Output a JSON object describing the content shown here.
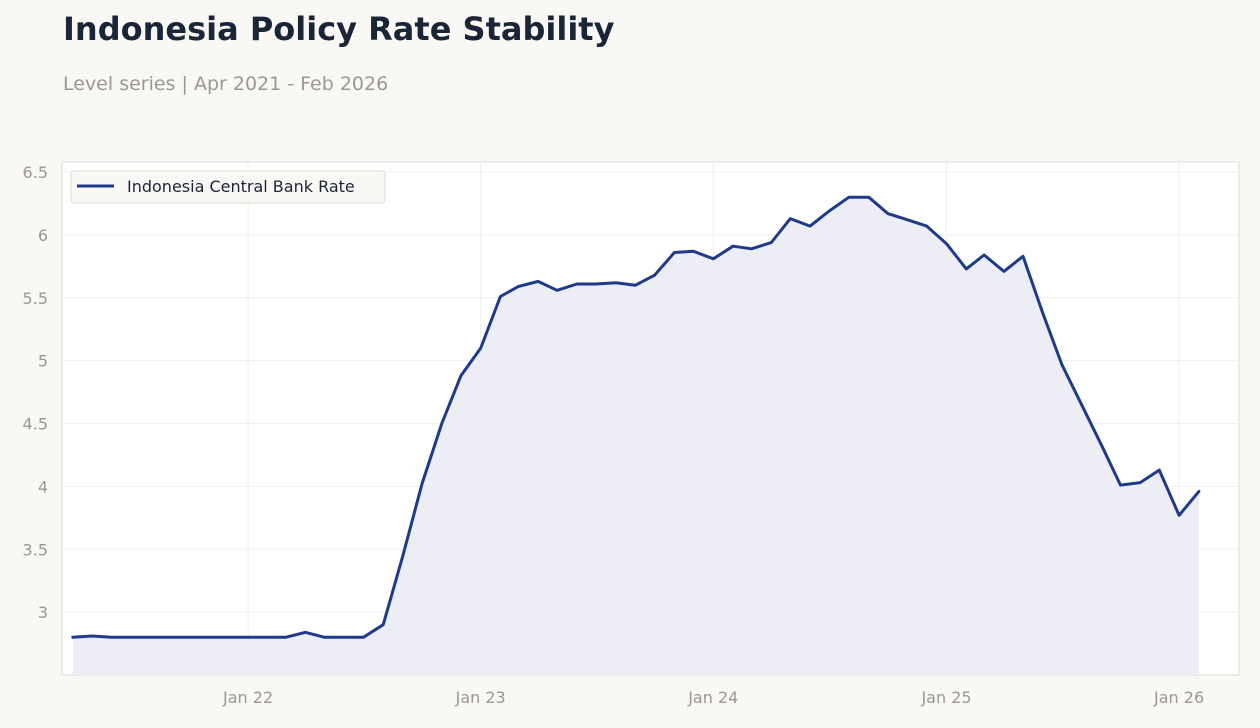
{
  "chart_data": {
    "type": "area",
    "title": "Indonesia Policy Rate Stability",
    "subtitle": "Level series | Apr 2021 - Feb 2026",
    "xlabel": "",
    "ylabel": "",
    "ylim": [
      2.5,
      6.58
    ],
    "y_ticks": [
      3,
      3.5,
      4,
      4.5,
      5,
      5.5,
      6,
      6.5
    ],
    "x_range": [
      "2021-03-15",
      "2026-04-05"
    ],
    "x_ticks": [
      {
        "date": "2022-01-01",
        "label": "Jan 22"
      },
      {
        "date": "2023-01-01",
        "label": "Jan 23"
      },
      {
        "date": "2024-01-01",
        "label": "Jan 24"
      },
      {
        "date": "2025-01-01",
        "label": "Jan 25"
      },
      {
        "date": "2026-01-01",
        "label": "Jan 26"
      }
    ],
    "grid": true,
    "legend": "top-left",
    "colors": {
      "line": "#1f3a8a",
      "fill": "#ecedf5",
      "background": "#f9f8f5",
      "plot_background": "#ffffff"
    },
    "series": [
      {
        "name": "Indonesia Central Bank Rate",
        "x": [
          "2021-04-01",
          "2021-05-01",
          "2021-06-01",
          "2021-07-01",
          "2021-08-01",
          "2021-09-01",
          "2021-10-01",
          "2021-11-01",
          "2021-12-01",
          "2022-01-01",
          "2022-02-01",
          "2022-03-01",
          "2022-04-01",
          "2022-05-01",
          "2022-06-01",
          "2022-07-01",
          "2022-08-01",
          "2022-09-01",
          "2022-10-01",
          "2022-11-01",
          "2022-12-01",
          "2023-01-01",
          "2023-02-01",
          "2023-03-01",
          "2023-04-01",
          "2023-05-01",
          "2023-06-01",
          "2023-07-01",
          "2023-08-01",
          "2023-09-01",
          "2023-10-01",
          "2023-11-01",
          "2023-12-01",
          "2024-01-01",
          "2024-02-01",
          "2024-03-01",
          "2024-04-01",
          "2024-05-01",
          "2024-06-01",
          "2024-07-01",
          "2024-08-01",
          "2024-09-01",
          "2024-10-01",
          "2024-11-01",
          "2024-12-01",
          "2025-01-01",
          "2025-02-01",
          "2025-03-01",
          "2025-04-01",
          "2025-05-01",
          "2025-06-01",
          "2025-07-01",
          "2025-08-01",
          "2025-09-01",
          "2025-10-01",
          "2025-11-01",
          "2025-12-01",
          "2026-01-01",
          "2026-02-01"
        ],
        "values": [
          2.8,
          2.81,
          2.8,
          2.8,
          2.8,
          2.8,
          2.8,
          2.8,
          2.8,
          2.8,
          2.8,
          2.8,
          2.84,
          2.8,
          2.8,
          2.8,
          2.9,
          3.45,
          4.02,
          4.5,
          4.88,
          5.1,
          5.51,
          5.59,
          5.63,
          5.56,
          5.61,
          5.61,
          5.62,
          5.6,
          5.68,
          5.86,
          5.87,
          5.81,
          5.91,
          5.89,
          5.94,
          6.13,
          6.07,
          6.19,
          6.3,
          6.3,
          6.17,
          6.12,
          6.07,
          5.93,
          5.73,
          5.84,
          5.71,
          5.83,
          5.38,
          4.97,
          4.65,
          4.33,
          4.01,
          4.03,
          4.13,
          3.77,
          3.96
        ]
      }
    ]
  }
}
